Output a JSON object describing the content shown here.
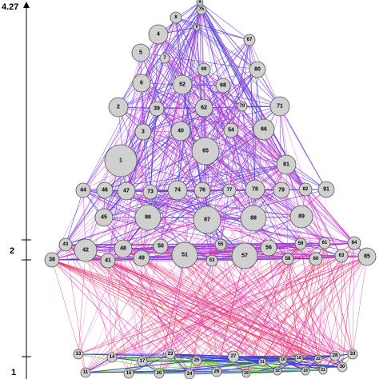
{
  "axis": {
    "ticks": [
      {
        "label": "4.27",
        "value": 4.27
      },
      {
        "label": "2",
        "value": 2
      },
      {
        "label": "1",
        "value": 1
      }
    ]
  },
  "palette": {
    "blue_edge": "#3a3ad8",
    "magenta_edge": "#e040c8",
    "red_edge": "#e83050",
    "purple_edge": "#9040d8",
    "green_edge": "#7ee040",
    "node_fill": "#d0d0d0"
  },
  "nodes": [
    {
      "id": "A"
    },
    {
      "id": "75"
    },
    {
      "id": "8"
    },
    {
      "id": "9"
    },
    {
      "id": "4"
    },
    {
      "id": "67"
    },
    {
      "id": "5"
    },
    {
      "id": "7"
    },
    {
      "id": "69"
    },
    {
      "id": "80"
    },
    {
      "id": "6"
    },
    {
      "id": "52"
    },
    {
      "id": "68"
    },
    {
      "id": "2"
    },
    {
      "id": "39"
    },
    {
      "id": "62"
    },
    {
      "id": "70"
    },
    {
      "id": "71"
    },
    {
      "id": "3"
    },
    {
      "id": "40"
    },
    {
      "id": "54"
    },
    {
      "id": "66"
    },
    {
      "id": "1"
    },
    {
      "id": "65"
    },
    {
      "id": "81"
    },
    {
      "id": "44"
    },
    {
      "id": "46"
    },
    {
      "id": "47"
    },
    {
      "id": "73"
    },
    {
      "id": "74"
    },
    {
      "id": "76"
    },
    {
      "id": "77"
    },
    {
      "id": "78"
    },
    {
      "id": "79"
    },
    {
      "id": "82"
    },
    {
      "id": "91"
    },
    {
      "id": "45"
    },
    {
      "id": "86"
    },
    {
      "id": "87"
    },
    {
      "id": "88"
    },
    {
      "id": "89"
    },
    {
      "id": "43"
    },
    {
      "id": "42"
    },
    {
      "id": "48"
    },
    {
      "id": "50"
    },
    {
      "id": "55"
    },
    {
      "id": "56"
    },
    {
      "id": "59"
    },
    {
      "id": "61"
    },
    {
      "id": "64"
    },
    {
      "id": "38"
    },
    {
      "id": "41"
    },
    {
      "id": "49"
    },
    {
      "id": "51"
    },
    {
      "id": "53"
    },
    {
      "id": "57"
    },
    {
      "id": "58"
    },
    {
      "id": "60"
    },
    {
      "id": "63"
    },
    {
      "id": "85"
    },
    {
      "id": "13"
    },
    {
      "id": "14"
    },
    {
      "id": "17"
    },
    {
      "id": "23"
    },
    {
      "id": "25"
    },
    {
      "id": "27"
    },
    {
      "id": "16"
    },
    {
      "id": "18"
    },
    {
      "id": "22"
    },
    {
      "id": "28"
    },
    {
      "id": "33"
    },
    {
      "id": "11"
    },
    {
      "id": "15"
    },
    {
      "id": "20"
    },
    {
      "id": "24"
    },
    {
      "id": "26"
    },
    {
      "id": "29"
    },
    {
      "id": "31"
    },
    {
      "id": "32"
    },
    {
      "id": "19"
    },
    {
      "id": "21"
    },
    {
      "id": "30"
    }
  ]
}
